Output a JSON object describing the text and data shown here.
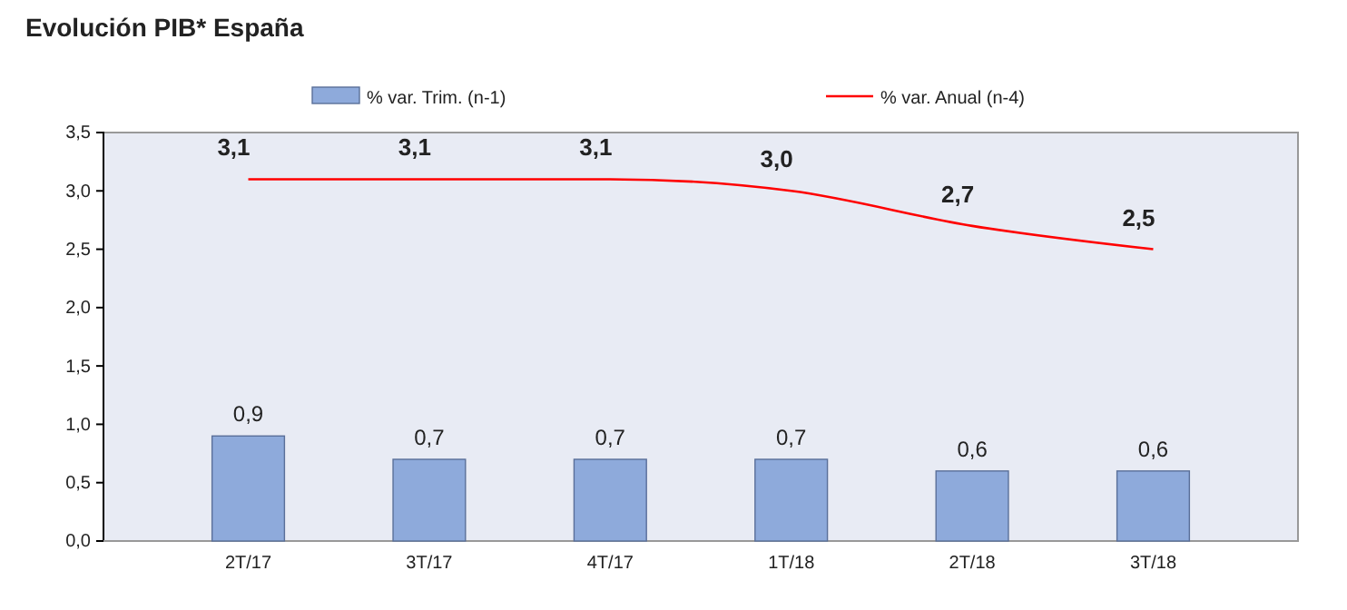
{
  "chart_data": {
    "type": "bar",
    "title": "Evolución PIB* España",
    "categories": [
      "2T/17",
      "3T/17",
      "4T/17",
      "1T/18",
      "2T/18",
      "3T/18"
    ],
    "series": [
      {
        "name": "% var. Trim. (n-1)",
        "color": "#8eaadb",
        "values": [
          0.9,
          0.7,
          0.7,
          0.7,
          0.6,
          0.6
        ],
        "value_labels": [
          "0,9",
          "0,7",
          "0,7",
          "0,7",
          "0,6",
          "0,6"
        ]
      },
      {
        "name": "% var. Anual (n-4)",
        "type": "line",
        "color": "#ff0000",
        "values": [
          3.1,
          3.1,
          3.1,
          3.0,
          2.7,
          2.5
        ],
        "value_labels": [
          "3,1",
          "3,1",
          "3,1",
          "3,0",
          "2,7",
          "2,5"
        ]
      }
    ],
    "ylim": [
      0,
      3.5
    ],
    "yticks": [
      {
        "value": 0,
        "label": "0,0"
      },
      {
        "value": 0.5,
        "label": "0,5"
      },
      {
        "value": 1,
        "label": "1,0"
      },
      {
        "value": 1.5,
        "label": "1,5"
      },
      {
        "value": 2,
        "label": "2,0"
      },
      {
        "value": 2.5,
        "label": "2,5"
      },
      {
        "value": 3,
        "label": "3,0"
      },
      {
        "value": 3.5,
        "label": "3,5"
      }
    ],
    "legend": "top",
    "marker": "none",
    "line_style": "solid"
  }
}
